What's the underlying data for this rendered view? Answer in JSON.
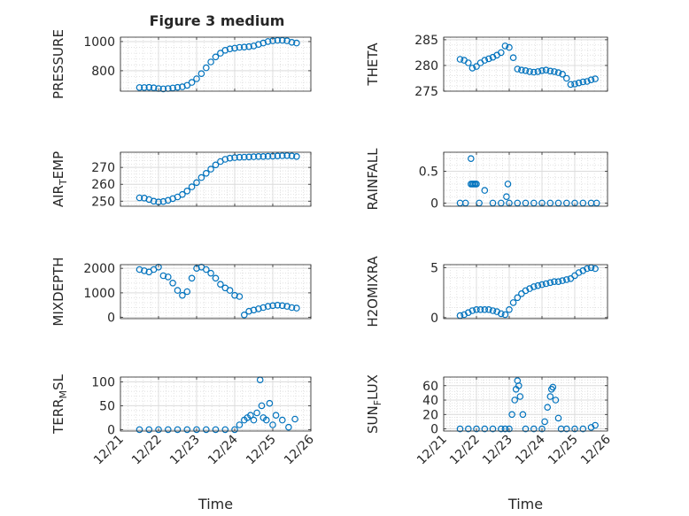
{
  "figure": {
    "title": "Figure 3 medium",
    "marker_color": "#0072BD",
    "axis_color": "#262626",
    "grid_color": "#dcdcdc"
  },
  "chart_data": [
    {
      "type": "scatter",
      "id": "pressure",
      "title": "Figure 3 medium",
      "ylabel": "PRESSURE",
      "xlabel": "",
      "xlim": [
        "12/21",
        "12/26"
      ],
      "ylim": [
        660,
        1030
      ],
      "yticks": [
        800,
        1000
      ],
      "xticks": [
        "12/21",
        "12/22",
        "12/23",
        "12/24",
        "12/25",
        "12/26"
      ],
      "grid": true,
      "minor_grid": true,
      "series": [
        {
          "x": [
            "12/21 12:00",
            "12/21 15:00",
            "12/21 18:00",
            "12/21 21:00",
            "12/22 00:00",
            "12/22 03:00",
            "12/22 06:00",
            "12/22 09:00",
            "12/22 12:00",
            "12/22 15:00",
            "12/22 18:00",
            "12/22 21:00",
            "12/23 00:00",
            "12/23 03:00",
            "12/23 06:00",
            "12/23 09:00",
            "12/23 12:00",
            "12/23 15:00",
            "12/23 18:00",
            "12/23 21:00",
            "12/24 00:00",
            "12/24 03:00",
            "12/24 06:00",
            "12/24 09:00",
            "12/24 12:00",
            "12/24 15:00",
            "12/24 18:00",
            "12/24 21:00",
            "12/25 00:00",
            "12/25 03:00",
            "12/25 06:00",
            "12/25 09:00",
            "12/25 12:00",
            "12/25 15:00"
          ],
          "y": [
            685,
            685,
            686,
            683,
            678,
            676,
            678,
            682,
            686,
            690,
            700,
            720,
            745,
            780,
            820,
            860,
            895,
            920,
            940,
            950,
            955,
            960,
            962,
            965,
            970,
            980,
            990,
            1000,
            1005,
            1008,
            1008,
            1005,
            995,
            990
          ]
        }
      ]
    },
    {
      "type": "scatter",
      "id": "theta",
      "title": "",
      "ylabel": "THETA",
      "xlabel": "",
      "xlim": [
        "12/21",
        "12/26"
      ],
      "ylim": [
        275,
        285.5
      ],
      "yticks": [
        275,
        280,
        285
      ],
      "xticks": [
        "12/21",
        "12/22",
        "12/23",
        "12/24",
        "12/25",
        "12/26"
      ],
      "grid": true,
      "minor_grid": true,
      "series": [
        {
          "x": [
            "12/21 12:00",
            "12/21 15:00",
            "12/21 18:00",
            "12/21 21:00",
            "12/22 00:00",
            "12/22 03:00",
            "12/22 06:00",
            "12/22 09:00",
            "12/22 12:00",
            "12/22 15:00",
            "12/22 18:00",
            "12/22 21:00",
            "12/23 00:00",
            "12/23 03:00",
            "12/23 06:00",
            "12/23 09:00",
            "12/23 12:00",
            "12/23 15:00",
            "12/23 18:00",
            "12/23 21:00",
            "12/24 00:00",
            "12/24 03:00",
            "12/24 06:00",
            "12/24 09:00",
            "12/24 12:00",
            "12/24 15:00",
            "12/24 18:00",
            "12/24 21:00",
            "12/25 00:00",
            "12/25 03:00",
            "12/25 06:00",
            "12/25 09:00",
            "12/25 12:00",
            "12/25 15:00"
          ],
          "y": [
            281.2,
            281.0,
            280.5,
            279.5,
            279.8,
            280.5,
            281.0,
            281.3,
            281.6,
            282.0,
            282.5,
            283.8,
            283.5,
            281.5,
            279.3,
            279.1,
            279.0,
            278.8,
            278.7,
            278.8,
            279.0,
            279.1,
            278.9,
            278.8,
            278.6,
            278.3,
            277.5,
            276.3,
            276.4,
            276.6,
            276.8,
            276.9,
            277.2,
            277.4
          ]
        }
      ]
    },
    {
      "type": "scatter",
      "id": "air-temp",
      "title": "",
      "ylabel": "AIR_TEMP",
      "xlabel": "",
      "xlim": [
        "12/21",
        "12/26"
      ],
      "ylim": [
        247,
        279
      ],
      "yticks": [
        250,
        260,
        270
      ],
      "xticks": [
        "12/21",
        "12/22",
        "12/23",
        "12/24",
        "12/25",
        "12/26"
      ],
      "grid": true,
      "minor_grid": true,
      "series": [
        {
          "x": [
            "12/21 12:00",
            "12/21 15:00",
            "12/21 18:00",
            "12/21 21:00",
            "12/22 00:00",
            "12/22 03:00",
            "12/22 06:00",
            "12/22 09:00",
            "12/22 12:00",
            "12/22 15:00",
            "12/22 18:00",
            "12/22 21:00",
            "12/23 00:00",
            "12/23 03:00",
            "12/23 06:00",
            "12/23 09:00",
            "12/23 12:00",
            "12/23 15:00",
            "12/23 18:00",
            "12/23 21:00",
            "12/24 00:00",
            "12/24 03:00",
            "12/24 06:00",
            "12/24 09:00",
            "12/24 12:00",
            "12/24 15:00",
            "12/24 18:00",
            "12/24 21:00",
            "12/25 00:00",
            "12/25 03:00",
            "12/25 06:00",
            "12/25 09:00",
            "12/25 12:00",
            "12/25 15:00"
          ],
          "y": [
            252,
            251.8,
            251,
            250,
            249.5,
            249.8,
            250.5,
            251.5,
            252.5,
            254,
            256,
            258.5,
            261,
            264,
            266.5,
            269,
            271.5,
            273.5,
            274.8,
            275.5,
            275.8,
            276,
            276.1,
            276.2,
            276.3,
            276.5,
            276.5,
            276.6,
            276.7,
            276.8,
            276.9,
            277,
            276.8,
            276.5
          ]
        }
      ]
    },
    {
      "type": "scatter",
      "id": "rainfall",
      "title": "",
      "ylabel": "RAINFALL",
      "xlabel": "",
      "xlim": [
        "12/21",
        "12/26"
      ],
      "ylim": [
        -0.05,
        0.8
      ],
      "yticks": [
        0,
        0.5
      ],
      "xticks": [
        "12/21",
        "12/22",
        "12/23",
        "12/24",
        "12/25",
        "12/26"
      ],
      "grid": true,
      "minor_grid": true,
      "series": [
        {
          "x": [
            "12/21 12:00",
            "12/21 16:00",
            "12/21 20:00",
            "12/21 20:00",
            "12/21 21:00",
            "12/21 22:00",
            "12/21 23:00",
            "12/22 00:00",
            "12/22 02:00",
            "12/22 06:00",
            "12/22 12:00",
            "12/22 18:00",
            "12/22 22:00",
            "12/22 23:00",
            "12/23 00:00",
            "12/23 06:00",
            "12/23 12:00",
            "12/23 18:00",
            "12/24 00:00",
            "12/24 06:00",
            "12/24 12:00",
            "12/24 18:00",
            "12/25 00:00",
            "12/25 06:00",
            "12/25 12:00",
            "12/25 16:00"
          ],
          "y": [
            0,
            0,
            0.3,
            0.7,
            0.3,
            0.3,
            0.3,
            0.3,
            0,
            0.2,
            0,
            0,
            0.1,
            0.3,
            0,
            0,
            0,
            0,
            0,
            0,
            0,
            0,
            0,
            0,
            0,
            0
          ]
        }
      ]
    },
    {
      "type": "scatter",
      "id": "mixdepth",
      "title": "",
      "ylabel": "MIXDEPTH",
      "xlabel": "",
      "xlim": [
        "12/21",
        "12/26"
      ],
      "ylim": [
        -50,
        2150
      ],
      "yticks": [
        0,
        1000,
        2000
      ],
      "xticks": [
        "12/21",
        "12/22",
        "12/23",
        "12/24",
        "12/25",
        "12/26"
      ],
      "grid": true,
      "minor_grid": true,
      "series": [
        {
          "x": [
            "12/21 12:00",
            "12/21 15:00",
            "12/21 18:00",
            "12/21 21:00",
            "12/22 00:00",
            "12/22 03:00",
            "12/22 06:00",
            "12/22 09:00",
            "12/22 12:00",
            "12/22 15:00",
            "12/22 18:00",
            "12/22 21:00",
            "12/23 00:00",
            "12/23 03:00",
            "12/23 06:00",
            "12/23 09:00",
            "12/23 12:00",
            "12/23 15:00",
            "12/23 18:00",
            "12/23 21:00",
            "12/24 00:00",
            "12/24 03:00",
            "12/24 06:00",
            "12/24 09:00",
            "12/24 12:00",
            "12/24 15:00",
            "12/24 18:00",
            "12/24 21:00",
            "12/25 00:00",
            "12/25 03:00",
            "12/25 06:00",
            "12/25 09:00",
            "12/25 12:00",
            "12/25 15:00"
          ],
          "y": [
            1950,
            1900,
            1850,
            1950,
            2050,
            1700,
            1650,
            1400,
            1100,
            900,
            1050,
            1600,
            2000,
            2050,
            1950,
            1800,
            1600,
            1350,
            1200,
            1100,
            900,
            850,
            100,
            250,
            300,
            350,
            400,
            450,
            480,
            500,
            480,
            450,
            400,
            380
          ]
        }
      ]
    },
    {
      "type": "scatter",
      "id": "h2omixra",
      "title": "",
      "ylabel": "H2OMIXRA",
      "xlabel": "",
      "xlim": [
        "12/21",
        "12/26"
      ],
      "ylim": [
        -0.1,
        5.3
      ],
      "yticks": [
        0,
        5
      ],
      "xticks": [
        "12/21",
        "12/22",
        "12/23",
        "12/24",
        "12/25",
        "12/26"
      ],
      "grid": true,
      "minor_grid": true,
      "series": [
        {
          "x": [
            "12/21 12:00",
            "12/21 15:00",
            "12/21 18:00",
            "12/21 21:00",
            "12/22 00:00",
            "12/22 03:00",
            "12/22 06:00",
            "12/22 09:00",
            "12/22 12:00",
            "12/22 15:00",
            "12/22 18:00",
            "12/22 21:00",
            "12/23 00:00",
            "12/23 03:00",
            "12/23 06:00",
            "12/23 09:00",
            "12/23 12:00",
            "12/23 15:00",
            "12/23 18:00",
            "12/23 21:00",
            "12/24 00:00",
            "12/24 03:00",
            "12/24 06:00",
            "12/24 09:00",
            "12/24 12:00",
            "12/24 15:00",
            "12/24 18:00",
            "12/24 21:00",
            "12/25 00:00",
            "12/25 03:00",
            "12/25 06:00",
            "12/25 09:00",
            "12/25 12:00",
            "12/25 15:00"
          ],
          "y": [
            0.2,
            0.3,
            0.5,
            0.7,
            0.8,
            0.8,
            0.8,
            0.8,
            0.7,
            0.6,
            0.4,
            0.3,
            0.8,
            1.5,
            2.0,
            2.4,
            2.7,
            2.9,
            3.1,
            3.2,
            3.3,
            3.4,
            3.5,
            3.6,
            3.6,
            3.7,
            3.8,
            3.9,
            4.2,
            4.5,
            4.7,
            4.9,
            5.0,
            4.9
          ]
        }
      ]
    },
    {
      "type": "scatter",
      "id": "terr-msl",
      "title": "",
      "ylabel": "TERR_MSL",
      "xlabel": "Time",
      "xlim": [
        "12/21",
        "12/26"
      ],
      "ylim": [
        -3,
        110
      ],
      "yticks": [
        0,
        50,
        100
      ],
      "xticks": [
        "12/21",
        "12/22",
        "12/23",
        "12/24",
        "12/25",
        "12/26"
      ],
      "grid": true,
      "minor_grid": true,
      "series": [
        {
          "x": [
            "12/21 12:00",
            "12/21 18:00",
            "12/22 00:00",
            "12/22 06:00",
            "12/22 12:00",
            "12/22 18:00",
            "12/23 00:00",
            "12/23 06:00",
            "12/23 12:00",
            "12/23 18:00",
            "12/24 00:00",
            "12/24 03:00",
            "12/24 06:00",
            "12/24 08:00",
            "12/24 10:00",
            "12/24 12:00",
            "12/24 14:00",
            "12/24 16:00",
            "12/24 17:00",
            "12/24 18:00",
            "12/24 20:00",
            "12/24 22:00",
            "12/25 00:00",
            "12/25 02:00",
            "12/25 06:00",
            "12/25 10:00",
            "12/25 14:00"
          ],
          "y": [
            0,
            0,
            0,
            0,
            0,
            0,
            0,
            0,
            0,
            0,
            0,
            10,
            20,
            25,
            30,
            20,
            35,
            104,
            50,
            25,
            20,
            55,
            10,
            30,
            20,
            5,
            22
          ]
        }
      ]
    },
    {
      "type": "scatter",
      "id": "sun-flux",
      "title": "",
      "ylabel": "SUN_FLUX",
      "xlabel": "Time",
      "xlim": [
        "12/21",
        "12/26"
      ],
      "ylim": [
        -3,
        72
      ],
      "yticks": [
        0,
        20,
        40,
        60
      ],
      "xticks": [
        "12/21",
        "12/22",
        "12/23",
        "12/24",
        "12/25",
        "12/26"
      ],
      "grid": true,
      "minor_grid": true,
      "series": [
        {
          "x": [
            "12/21 12:00",
            "12/21 18:00",
            "12/22 00:00",
            "12/22 06:00",
            "12/22 12:00",
            "12/22 18:00",
            "12/22 21:00",
            "12/23 00:00",
            "12/23 02:00",
            "12/23 04:00",
            "12/23 05:00",
            "12/23 06:00",
            "12/23 07:00",
            "12/23 08:00",
            "12/23 10:00",
            "12/23 12:00",
            "12/23 18:00",
            "12/24 00:00",
            "12/24 02:00",
            "12/24 04:00",
            "12/24 06:00",
            "12/24 07:00",
            "12/24 08:00",
            "12/24 10:00",
            "12/24 12:00",
            "12/24 14:00",
            "12/24 18:00",
            "12/25 00:00",
            "12/25 06:00",
            "12/25 12:00",
            "12/25 15:00"
          ],
          "y": [
            0,
            0,
            0,
            0,
            0,
            0,
            0,
            0,
            20,
            40,
            55,
            67,
            60,
            45,
            20,
            0,
            0,
            0,
            10,
            30,
            45,
            55,
            58,
            40,
            15,
            0,
            0,
            0,
            0,
            2,
            5
          ]
        }
      ]
    }
  ]
}
